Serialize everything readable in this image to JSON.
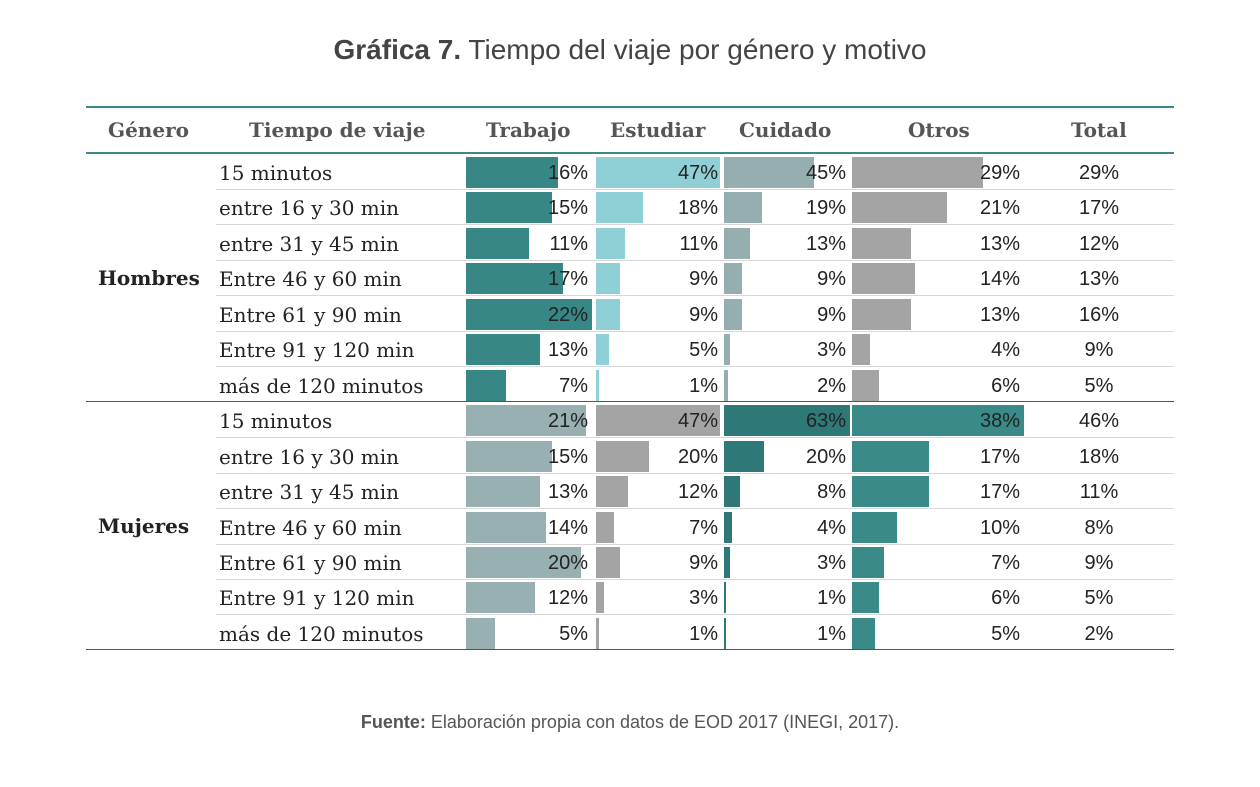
{
  "title": {
    "bold": "Gráfica 7.",
    "rest": "Tiempo del viaje por género y motivo"
  },
  "source": {
    "bold": "Fuente:",
    "rest": "Elaboración propia con datos de EOD 2017 (INEGI, 2017)."
  },
  "chart_data": {
    "type": "table",
    "headers": [
      "Género",
      "Tiempo de viaje",
      "Trabajo",
      "Estudiar",
      "Cuidado",
      "Otros",
      "Total"
    ],
    "groups": [
      {
        "name": "Hombres",
        "colors": {
          "Trabajo": "#378787",
          "Estudiar": "#8fcfd6",
          "Cuidado": "#95aeb0",
          "Otros": "#a4a4a4"
        },
        "rows": [
          {
            "label": "15 minutos",
            "values": [
              16,
              47,
              45,
              29,
              29
            ]
          },
          {
            "label": "entre 16 y 30 min",
            "values": [
              15,
              18,
              19,
              21,
              17
            ]
          },
          {
            "label": "entre 31 y 45 min",
            "values": [
              11,
              11,
              13,
              13,
              12
            ]
          },
          {
            "label": "Entre 46 y 60 min",
            "values": [
              17,
              9,
              9,
              14,
              13
            ]
          },
          {
            "label": "Entre 61 y 90 min",
            "values": [
              22,
              9,
              9,
              13,
              16
            ]
          },
          {
            "label": "Entre 91 y 120 min",
            "values": [
              13,
              5,
              3,
              4,
              9
            ]
          },
          {
            "label": "más de 120 minutos",
            "values": [
              7,
              1,
              2,
              6,
              5
            ]
          }
        ]
      },
      {
        "name": "Mujeres",
        "colors": {
          "Trabajo": "#98b0b2",
          "Estudiar": "#a4a4a4",
          "Cuidado": "#2f7878",
          "Otros": "#3a8a8a"
        },
        "rows": [
          {
            "label": "15 minutos",
            "values": [
              21,
              47,
              63,
              38,
              46
            ]
          },
          {
            "label": "entre 16 y 30 min",
            "values": [
              15,
              20,
              20,
              17,
              18
            ]
          },
          {
            "label": "entre 31 y 45 min",
            "values": [
              13,
              12,
              8,
              17,
              11
            ]
          },
          {
            "label": "Entre 46 y 60 min",
            "values": [
              14,
              7,
              4,
              10,
              8
            ]
          },
          {
            "label": "Entre 61 y 90 min",
            "values": [
              20,
              9,
              3,
              7,
              9
            ]
          },
          {
            "label": "Entre 91 y 120 min",
            "values": [
              12,
              3,
              1,
              6,
              5
            ]
          },
          {
            "label": "más de 120 minutos",
            "values": [
              5,
              1,
              1,
              5,
              2
            ]
          }
        ]
      }
    ],
    "bar_max": [
      22,
      47,
      63,
      38
    ],
    "value_suffix": "%"
  }
}
